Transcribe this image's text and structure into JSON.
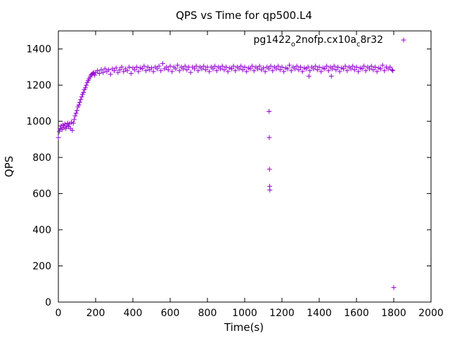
{
  "chart_data": {
    "type": "scatter",
    "title": "QPS vs Time for qp500.L4",
    "xlabel": "Time(s)",
    "ylabel": "QPS",
    "xlim": [
      0,
      2000
    ],
    "ylim": [
      0,
      1500
    ],
    "xticks": [
      0,
      200,
      400,
      600,
      800,
      1000,
      1200,
      1400,
      1600,
      1800,
      2000
    ],
    "yticks": [
      0,
      200,
      400,
      600,
      800,
      1000,
      1200,
      1400
    ],
    "grid": false,
    "legend": {
      "placement": "top-right",
      "text": {
        "pre": "pg1422",
        "sub1": "o",
        "mid": "2nofp.cx10a",
        "sub2": "c",
        "post": "8r32"
      }
    },
    "series": [
      {
        "name": "pg1422_o2nofp.cx10a_c8r32",
        "color": "#9400d3",
        "marker": "plus",
        "points": [
          [
            0,
            910
          ],
          [
            5,
            945
          ],
          [
            10,
            960
          ],
          [
            15,
            975
          ],
          [
            20,
            955
          ],
          [
            25,
            980
          ],
          [
            30,
            965
          ],
          [
            35,
            985
          ],
          [
            40,
            960
          ],
          [
            45,
            975
          ],
          [
            50,
            990
          ],
          [
            55,
            970
          ],
          [
            60,
            985
          ],
          [
            65,
            960
          ],
          [
            70,
            995
          ],
          [
            75,
            950
          ],
          [
            80,
            990
          ],
          [
            85,
            1010
          ],
          [
            90,
            1030
          ],
          [
            95,
            1045
          ],
          [
            100,
            1060
          ],
          [
            105,
            1080
          ],
          [
            110,
            1090
          ],
          [
            115,
            1105
          ],
          [
            120,
            1120
          ],
          [
            125,
            1135
          ],
          [
            130,
            1150
          ],
          [
            135,
            1160
          ],
          [
            140,
            1175
          ],
          [
            145,
            1185
          ],
          [
            150,
            1200
          ],
          [
            155,
            1215
          ],
          [
            160,
            1225
          ],
          [
            165,
            1235
          ],
          [
            170,
            1245
          ],
          [
            175,
            1255
          ],
          [
            180,
            1260
          ],
          [
            185,
            1265
          ],
          [
            190,
            1270
          ],
          [
            195,
            1255
          ],
          [
            200,
            1270
          ],
          [
            210,
            1280
          ],
          [
            220,
            1265
          ],
          [
            230,
            1285
          ],
          [
            240,
            1270
          ],
          [
            250,
            1290
          ],
          [
            260,
            1275
          ],
          [
            270,
            1285
          ],
          [
            280,
            1260
          ],
          [
            290,
            1290
          ],
          [
            300,
            1280
          ],
          [
            310,
            1295
          ],
          [
            320,
            1270
          ],
          [
            330,
            1285
          ],
          [
            340,
            1300
          ],
          [
            350,
            1275
          ],
          [
            360,
            1290
          ],
          [
            370,
            1280
          ],
          [
            380,
            1300
          ],
          [
            390,
            1265
          ],
          [
            400,
            1295
          ],
          [
            410,
            1285
          ],
          [
            420,
            1300
          ],
          [
            430,
            1275
          ],
          [
            440,
            1295
          ],
          [
            450,
            1290
          ],
          [
            460,
            1305
          ],
          [
            470,
            1280
          ],
          [
            480,
            1300
          ],
          [
            490,
            1285
          ],
          [
            500,
            1295
          ],
          [
            510,
            1275
          ],
          [
            520,
            1300
          ],
          [
            530,
            1290
          ],
          [
            540,
            1305
          ],
          [
            550,
            1280
          ],
          [
            560,
            1320
          ],
          [
            570,
            1290
          ],
          [
            580,
            1300
          ],
          [
            590,
            1285
          ],
          [
            600,
            1305
          ],
          [
            610,
            1275
          ],
          [
            620,
            1300
          ],
          [
            630,
            1290
          ],
          [
            640,
            1310
          ],
          [
            650,
            1280
          ],
          [
            660,
            1300
          ],
          [
            670,
            1290
          ],
          [
            680,
            1305
          ],
          [
            690,
            1285
          ],
          [
            700,
            1300
          ],
          [
            710,
            1270
          ],
          [
            720,
            1300
          ],
          [
            730,
            1290
          ],
          [
            740,
            1305
          ],
          [
            750,
            1280
          ],
          [
            760,
            1300
          ],
          [
            770,
            1290
          ],
          [
            780,
            1305
          ],
          [
            790,
            1285
          ],
          [
            800,
            1300
          ],
          [
            810,
            1275
          ],
          [
            820,
            1300
          ],
          [
            830,
            1290
          ],
          [
            840,
            1305
          ],
          [
            850,
            1280
          ],
          [
            860,
            1300
          ],
          [
            870,
            1290
          ],
          [
            880,
            1305
          ],
          [
            890,
            1285
          ],
          [
            900,
            1300
          ],
          [
            910,
            1275
          ],
          [
            920,
            1295
          ],
          [
            930,
            1290
          ],
          [
            940,
            1305
          ],
          [
            950,
            1280
          ],
          [
            960,
            1300
          ],
          [
            970,
            1290
          ],
          [
            980,
            1305
          ],
          [
            990,
            1285
          ],
          [
            1000,
            1300
          ],
          [
            1010,
            1275
          ],
          [
            1020,
            1295
          ],
          [
            1030,
            1290
          ],
          [
            1040,
            1305
          ],
          [
            1050,
            1280
          ],
          [
            1060,
            1300
          ],
          [
            1070,
            1290
          ],
          [
            1080,
            1305
          ],
          [
            1090,
            1285
          ],
          [
            1100,
            1295
          ],
          [
            1110,
            1275
          ],
          [
            1120,
            1300
          ],
          [
            1130,
            1290
          ],
          [
            1131,
            1055
          ],
          [
            1132,
            910
          ],
          [
            1133,
            735
          ],
          [
            1134,
            640
          ],
          [
            1135,
            620
          ],
          [
            1140,
            1305
          ],
          [
            1150,
            1280
          ],
          [
            1160,
            1300
          ],
          [
            1170,
            1290
          ],
          [
            1180,
            1305
          ],
          [
            1190,
            1285
          ],
          [
            1200,
            1300
          ],
          [
            1210,
            1275
          ],
          [
            1220,
            1295
          ],
          [
            1230,
            1290
          ],
          [
            1240,
            1310
          ],
          [
            1250,
            1280
          ],
          [
            1260,
            1300
          ],
          [
            1270,
            1290
          ],
          [
            1280,
            1305
          ],
          [
            1290,
            1285
          ],
          [
            1300,
            1300
          ],
          [
            1310,
            1275
          ],
          [
            1320,
            1295
          ],
          [
            1330,
            1290
          ],
          [
            1340,
            1300
          ],
          [
            1345,
            1250
          ],
          [
            1350,
            1280
          ],
          [
            1360,
            1300
          ],
          [
            1370,
            1290
          ],
          [
            1380,
            1305
          ],
          [
            1390,
            1285
          ],
          [
            1400,
            1300
          ],
          [
            1410,
            1275
          ],
          [
            1420,
            1295
          ],
          [
            1430,
            1290
          ],
          [
            1440,
            1305
          ],
          [
            1450,
            1280
          ],
          [
            1460,
            1300
          ],
          [
            1465,
            1250
          ],
          [
            1470,
            1290
          ],
          [
            1480,
            1305
          ],
          [
            1490,
            1285
          ],
          [
            1500,
            1300
          ],
          [
            1510,
            1275
          ],
          [
            1520,
            1295
          ],
          [
            1530,
            1290
          ],
          [
            1540,
            1305
          ],
          [
            1550,
            1280
          ],
          [
            1560,
            1300
          ],
          [
            1570,
            1290
          ],
          [
            1580,
            1305
          ],
          [
            1590,
            1285
          ],
          [
            1600,
            1300
          ],
          [
            1610,
            1275
          ],
          [
            1620,
            1295
          ],
          [
            1630,
            1290
          ],
          [
            1640,
            1305
          ],
          [
            1650,
            1280
          ],
          [
            1660,
            1300
          ],
          [
            1670,
            1290
          ],
          [
            1680,
            1305
          ],
          [
            1690,
            1285
          ],
          [
            1700,
            1300
          ],
          [
            1710,
            1275
          ],
          [
            1720,
            1295
          ],
          [
            1730,
            1290
          ],
          [
            1740,
            1310
          ],
          [
            1750,
            1280
          ],
          [
            1760,
            1300
          ],
          [
            1770,
            1290
          ],
          [
            1780,
            1300
          ],
          [
            1790,
            1285
          ],
          [
            1795,
            1280
          ],
          [
            1800,
            80
          ]
        ]
      }
    ]
  }
}
